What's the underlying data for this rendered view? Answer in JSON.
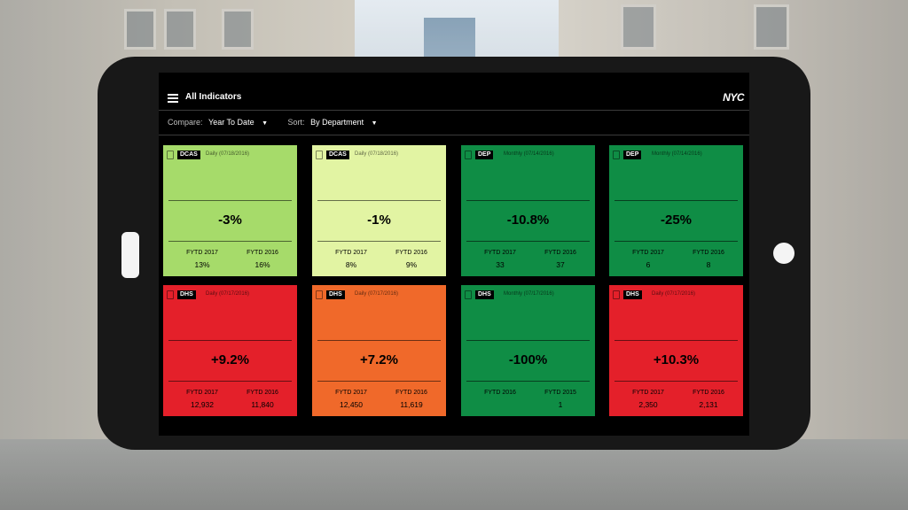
{
  "header": {
    "title": "All Indicators",
    "logo": "NYC"
  },
  "filters": {
    "compare_label": "Compare:",
    "compare_value": "Year To Date",
    "sort_label": "Sort:",
    "sort_value": "By Department"
  },
  "cards": [
    {
      "dept": "DCAS",
      "freq": "Daily (07/18/2016)",
      "change": "-3%",
      "l1": "FYTD 2017",
      "v1": "13%",
      "l2": "FYTD 2016",
      "v2": "16%",
      "color": "#a6db6a"
    },
    {
      "dept": "DCAS",
      "freq": "Daily (07/18/2016)",
      "change": "-1%",
      "l1": "FYTD 2017",
      "v1": "8%",
      "l2": "FYTD 2016",
      "v2": "9%",
      "color": "#e2f4a3"
    },
    {
      "dept": "DEP",
      "freq": "Monthly (07/14/2016)",
      "change": "-10.8%",
      "l1": "FYTD 2017",
      "v1": "33",
      "l2": "FYTD 2016",
      "v2": "37",
      "color": "#0f8d45"
    },
    {
      "dept": "DEP",
      "freq": "Monthly (07/14/2016)",
      "change": "-25%",
      "l1": "FYTD 2017",
      "v1": "6",
      "l2": "FYTD 2016",
      "v2": "8",
      "color": "#0f8d45"
    },
    {
      "dept": "DHS",
      "freq": "Daily (07/17/2016)",
      "change": "+9.2%",
      "l1": "FYTD 2017",
      "v1": "12,932",
      "l2": "FYTD 2016",
      "v2": "11,840",
      "color": "#e4202a"
    },
    {
      "dept": "DHS",
      "freq": "Daily (07/17/2016)",
      "change": "+7.2%",
      "l1": "FYTD 2017",
      "v1": "12,450",
      "l2": "FYTD 2016",
      "v2": "11,619",
      "color": "#f0692a"
    },
    {
      "dept": "DHS",
      "freq": "Monthly (07/17/2016)",
      "change": "-100%",
      "l1": "FYTD 2016",
      "v1": "",
      "l2": "FYTD 2015",
      "v2": "1",
      "color": "#0f8d45"
    },
    {
      "dept": "DHS",
      "freq": "Daily (07/17/2016)",
      "change": "+10.3%",
      "l1": "FYTD 2017",
      "v1": "2,350",
      "l2": "FYTD 2016",
      "v2": "2,131",
      "color": "#e4202a"
    }
  ]
}
